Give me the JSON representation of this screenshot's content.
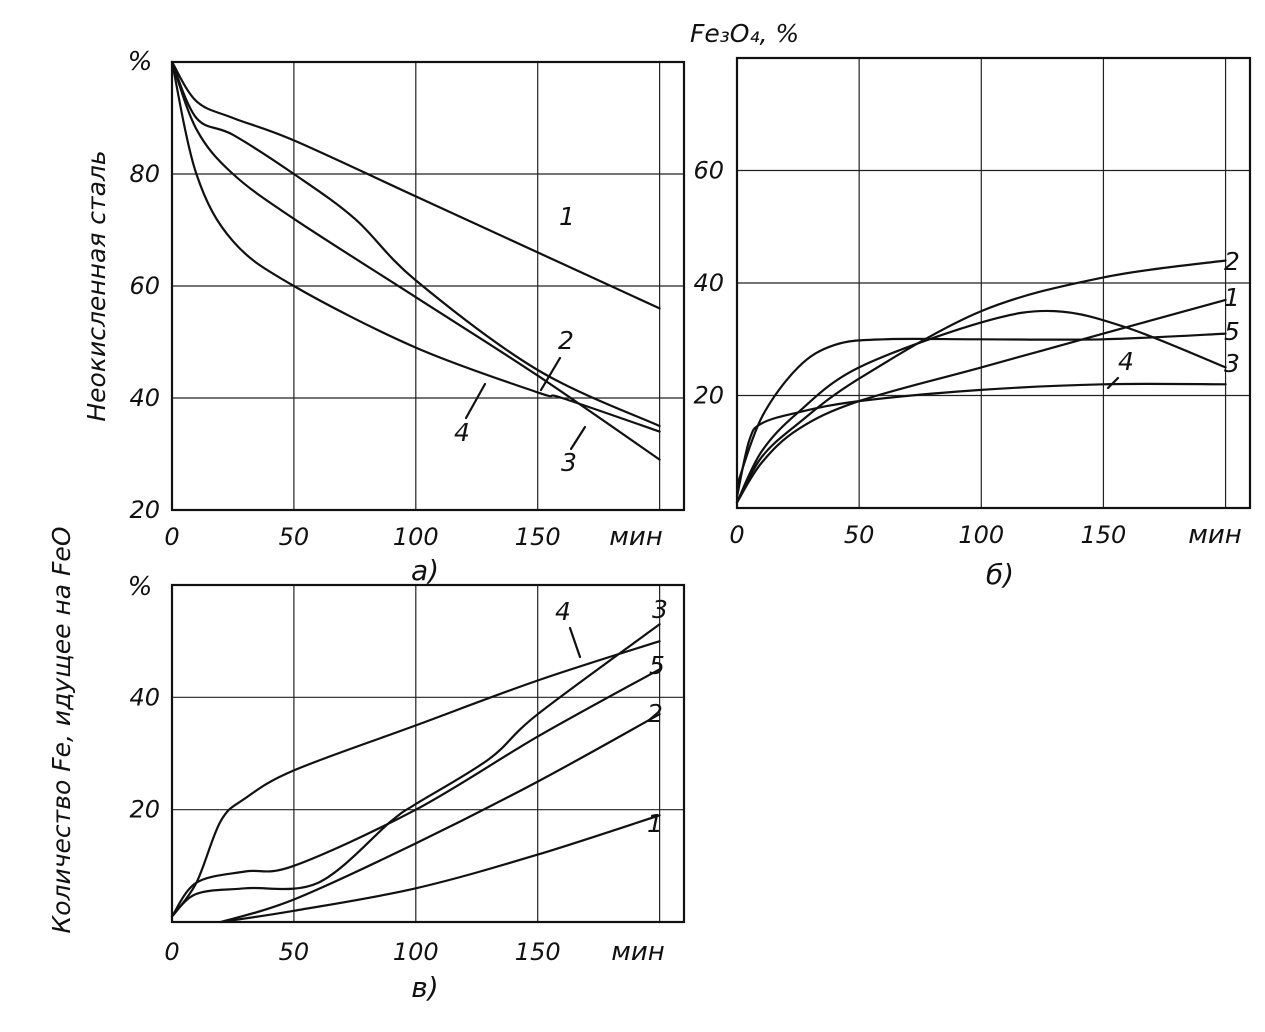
{
  "chart_data": [
    {
      "type": "line",
      "panel_label": "а)",
      "ylabel": "Неокисленная сталь",
      "y_unit": "%",
      "x_unit": "мин",
      "xlim": [
        0,
        210
      ],
      "ylim": [
        20,
        100
      ],
      "xticks": [
        "0",
        "50",
        "100",
        "150"
      ],
      "yticks": [
        "20",
        "40",
        "60",
        "80"
      ],
      "grid": true,
      "series": [
        {
          "name": "1",
          "x": [
            0,
            10,
            25,
            50,
            100,
            150,
            200
          ],
          "y": [
            100,
            93,
            90,
            86,
            76,
            66,
            56
          ]
        },
        {
          "name": "2",
          "x": [
            0,
            10,
            25,
            50,
            75,
            100,
            150,
            200
          ],
          "y": [
            100,
            90,
            87,
            80,
            72,
            61,
            45,
            35
          ]
        },
        {
          "name": "3",
          "x": [
            0,
            10,
            25,
            50,
            100,
            150,
            200
          ],
          "y": [
            100,
            88,
            80,
            72,
            58,
            44,
            29
          ]
        },
        {
          "name": "4",
          "x": [
            0,
            10,
            25,
            50,
            100,
            150,
            160,
            200
          ],
          "y": [
            100,
            80,
            68,
            60,
            49,
            41,
            40,
            34
          ]
        }
      ],
      "curve_labels": [
        "1",
        "2",
        "3",
        "4"
      ]
    },
    {
      "type": "line",
      "panel_label": "б)",
      "ylabel": "Fe₃O₄, %",
      "x_unit": "мин",
      "xlim": [
        0,
        210
      ],
      "ylim": [
        0,
        80
      ],
      "xticks": [
        "0",
        "50",
        "100",
        "150"
      ],
      "yticks": [
        "20",
        "40",
        "60"
      ],
      "grid": true,
      "series": [
        {
          "name": "1",
          "x": [
            0,
            10,
            25,
            50,
            100,
            150,
            200
          ],
          "y": [
            1,
            8,
            14,
            19,
            25,
            31,
            37
          ]
        },
        {
          "name": "2",
          "x": [
            0,
            10,
            25,
            50,
            100,
            150,
            200
          ],
          "y": [
            1,
            9,
            15,
            23,
            35,
            41,
            44
          ]
        },
        {
          "name": "3",
          "x": [
            0,
            10,
            25,
            50,
            100,
            130,
            160,
            200
          ],
          "y": [
            1,
            10,
            17,
            25,
            33,
            35,
            32,
            25
          ]
        },
        {
          "name": "4",
          "x": [
            0,
            5,
            10,
            25,
            50,
            100,
            150,
            200
          ],
          "y": [
            2,
            12,
            15,
            17,
            19,
            21,
            22,
            22
          ]
        },
        {
          "name": "5",
          "x": [
            0,
            10,
            25,
            40,
            60,
            100,
            150,
            200
          ],
          "y": [
            4,
            16,
            25,
            29,
            30,
            30,
            30,
            31
          ]
        }
      ],
      "curve_labels": [
        "1",
        "2",
        "3",
        "4",
        "5"
      ]
    },
    {
      "type": "line",
      "panel_label": "в)",
      "ylabel": "Количество Fe, идущее на FeO",
      "y_unit": "%",
      "x_unit": "мин",
      "xlim": [
        0,
        210
      ],
      "ylim": [
        0,
        60
      ],
      "xticks": [
        "0",
        "50",
        "100",
        "150"
      ],
      "yticks": [
        "20",
        "40"
      ],
      "grid": true,
      "series": [
        {
          "name": "1",
          "x": [
            20,
            50,
            100,
            150,
            200
          ],
          "y": [
            0,
            2,
            6,
            12,
            19
          ]
        },
        {
          "name": "2",
          "x": [
            20,
            50,
            100,
            150,
            200
          ],
          "y": [
            0,
            4,
            14,
            25,
            37
          ]
        },
        {
          "name": "3",
          "x": [
            0,
            10,
            30,
            60,
            90,
            100,
            130,
            150,
            200
          ],
          "y": [
            1,
            5,
            6,
            7,
            18,
            21,
            29,
            37,
            53
          ]
        },
        {
          "name": "4",
          "x": [
            0,
            10,
            20,
            30,
            50,
            100,
            150,
            200
          ],
          "y": [
            1,
            7,
            18,
            22,
            27,
            35,
            43,
            50
          ]
        },
        {
          "name": "5",
          "x": [
            0,
            10,
            30,
            50,
            100,
            150,
            200
          ],
          "y": [
            1,
            7,
            9,
            10,
            20,
            33,
            45
          ]
        }
      ],
      "curve_labels": [
        "1",
        "2",
        "3",
        "4",
        "5"
      ]
    }
  ]
}
